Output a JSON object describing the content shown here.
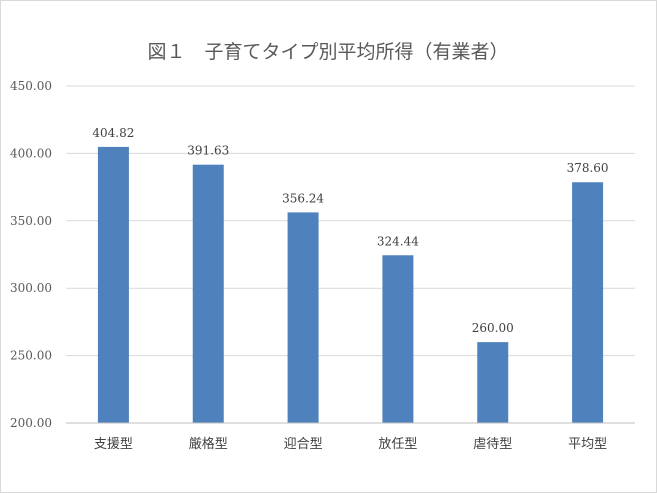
{
  "chart_data": {
    "type": "bar",
    "title": "図１　子育てタイプ別平均所得（有業者）",
    "categories": [
      "支援型",
      "厳格型",
      "迎合型",
      "放任型",
      "虐待型",
      "平均型"
    ],
    "values": [
      404.82,
      391.63,
      356.24,
      324.44,
      260.0,
      378.6
    ],
    "data_labels": [
      "404.82",
      "391.63",
      "356.24",
      "324.44",
      "260.00",
      "378.60"
    ],
    "y_ticks": [
      200,
      250,
      300,
      350,
      400,
      450
    ],
    "y_tick_labels": [
      "200.00",
      "250.00",
      "300.00",
      "350.00",
      "400.00",
      "450.00"
    ],
    "ylim": [
      200,
      450
    ],
    "xlabel": "",
    "ylabel": "",
    "grid": true,
    "legend": "none",
    "colors": {
      "bar": "#4f81bd",
      "grid": "#d9d9d9",
      "axis": "#bfbfbf"
    }
  }
}
